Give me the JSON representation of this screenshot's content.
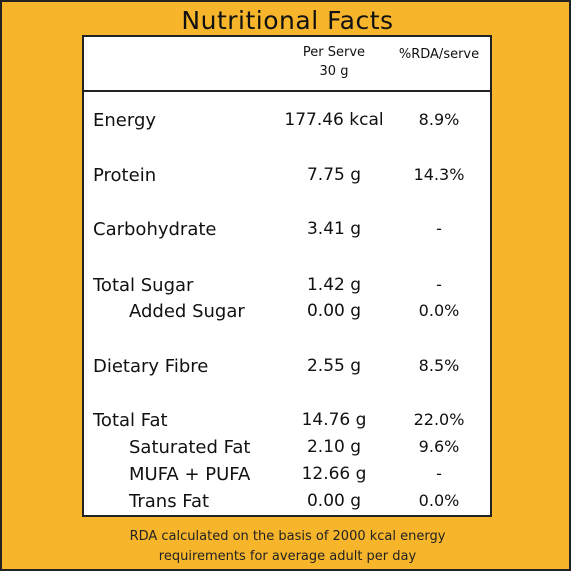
{
  "title": "Nutritional Facts",
  "columns": {
    "per_serve": "Per Serve",
    "serve_size": "30 g",
    "rda": "%RDA/serve"
  },
  "rows": [
    {
      "name": "Energy",
      "amount": "177.46 kcal",
      "rda": "8.9%"
    },
    {
      "name": "Protein",
      "amount": "7.75 g",
      "rda": "14.3%"
    },
    {
      "name": "Carbohydrate",
      "amount": "3.41 g",
      "rda": "-"
    },
    {
      "name": "Total Sugar",
      "amount": "1.42 g",
      "rda": "-"
    },
    {
      "name": "Added Sugar",
      "amount": "0.00 g",
      "rda": "0.0%"
    },
    {
      "name": "Dietary Fibre",
      "amount": "2.55 g",
      "rda": "8.5%"
    },
    {
      "name": "Total Fat",
      "amount": "14.76 g",
      "rda": "22.0%"
    },
    {
      "name": "Saturated Fat",
      "amount": "2.10 g",
      "rda": "9.6%"
    },
    {
      "name": "MUFA + PUFA",
      "amount": "12.66 g",
      "rda": "-"
    },
    {
      "name": "Trans Fat",
      "amount": "0.00 g",
      "rda": "0.0%"
    }
  ],
  "footer": {
    "line1": "RDA calculated on the basis of 2000 kcal energy",
    "line2": "requirements for average adult per day"
  },
  "colors": {
    "background": "#f7b52c",
    "panel": "#ffffff"
  }
}
